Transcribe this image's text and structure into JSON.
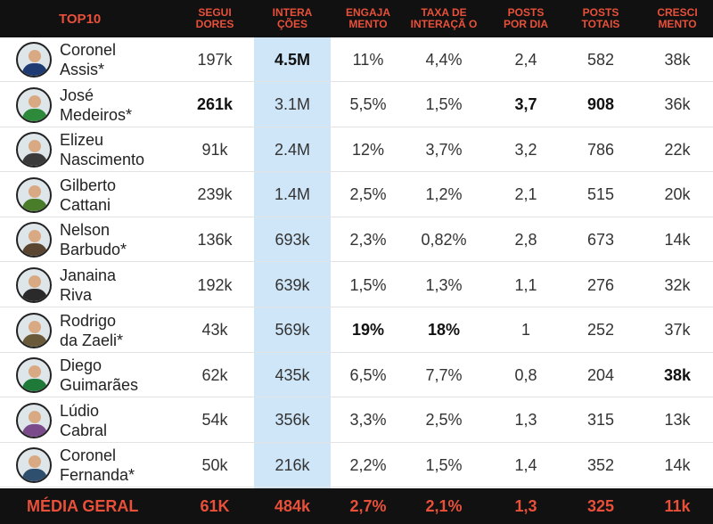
{
  "header": {
    "title": "TOP10",
    "columns": [
      "SEGUI\nDORES",
      "INTERA\nÇÕES",
      "ENGAJA\nMENTO",
      "TAXA DE\nINTERAÇÃ O",
      "POSTS\nPOR DIA",
      "POSTS\nTOTAIS",
      "CRESCI\nMENTO"
    ]
  },
  "rows": [
    {
      "name": "Coronel\nAssis*",
      "avatar": "coronel-assis",
      "vals": [
        "197k",
        "4.5M",
        "11%",
        "4,4%",
        "2,4",
        "582",
        "38k"
      ],
      "bold": [
        1
      ]
    },
    {
      "name": "José\nMedeiros*",
      "avatar": "jose-medeiros",
      "vals": [
        "261k",
        "3.1M",
        "5,5%",
        "1,5%",
        "3,7",
        "908",
        "36k"
      ],
      "bold": [
        0,
        4,
        5
      ]
    },
    {
      "name": "Elizeu\nNascimento",
      "avatar": "elizeu-nascimento",
      "vals": [
        "91k",
        "2.4M",
        "12%",
        "3,7%",
        "3,2",
        "786",
        "22k"
      ],
      "bold": []
    },
    {
      "name": "Gilberto\nCattani",
      "avatar": "gilberto-cattani",
      "vals": [
        "239k",
        "1.4M",
        "2,5%",
        "1,2%",
        "2,1",
        "515",
        "20k"
      ],
      "bold": []
    },
    {
      "name": "Nelson\nBarbudo*",
      "avatar": "nelson-barbudo",
      "vals": [
        "136k",
        "693k",
        "2,3%",
        "0,82%",
        "2,8",
        "673",
        "14k"
      ],
      "bold": []
    },
    {
      "name": "Janaina\nRiva",
      "avatar": "janaina-riva",
      "vals": [
        "192k",
        "639k",
        "1,5%",
        "1,3%",
        "1,1",
        "276",
        "32k"
      ],
      "bold": []
    },
    {
      "name": "Rodrigo\nda Zaeli*",
      "avatar": "rodrigo-da-zaeli",
      "vals": [
        "43k",
        "569k",
        "19%",
        "18%",
        "1",
        "252",
        "37k"
      ],
      "bold": [
        2,
        3
      ]
    },
    {
      "name": "Diego\nGuimarães",
      "avatar": "diego-guimaraes",
      "vals": [
        "62k",
        "435k",
        "6,5%",
        "7,7%",
        "0,8",
        "204",
        "38k"
      ],
      "bold": [
        6
      ]
    },
    {
      "name": "Lúdio\nCabral",
      "avatar": "ludio-cabral",
      "vals": [
        "54k",
        "356k",
        "3,3%",
        "2,5%",
        "1,3",
        "315",
        "13k"
      ],
      "bold": []
    },
    {
      "name": "Coronel\nFernanda*",
      "avatar": "coronel-fernanda",
      "vals": [
        "50k",
        "216k",
        "2,2%",
        "1,5%",
        "1,4",
        "352",
        "14k"
      ],
      "bold": []
    }
  ],
  "footer": {
    "label": "MÉDIA GERAL",
    "vals": [
      "61K",
      "484k",
      "2,7%",
      "2,1%",
      "1,3",
      "325",
      "11k"
    ]
  },
  "colors": {
    "accent": "#e8503a",
    "header_bg": "#111111",
    "highlight": "#cfe6f8"
  }
}
